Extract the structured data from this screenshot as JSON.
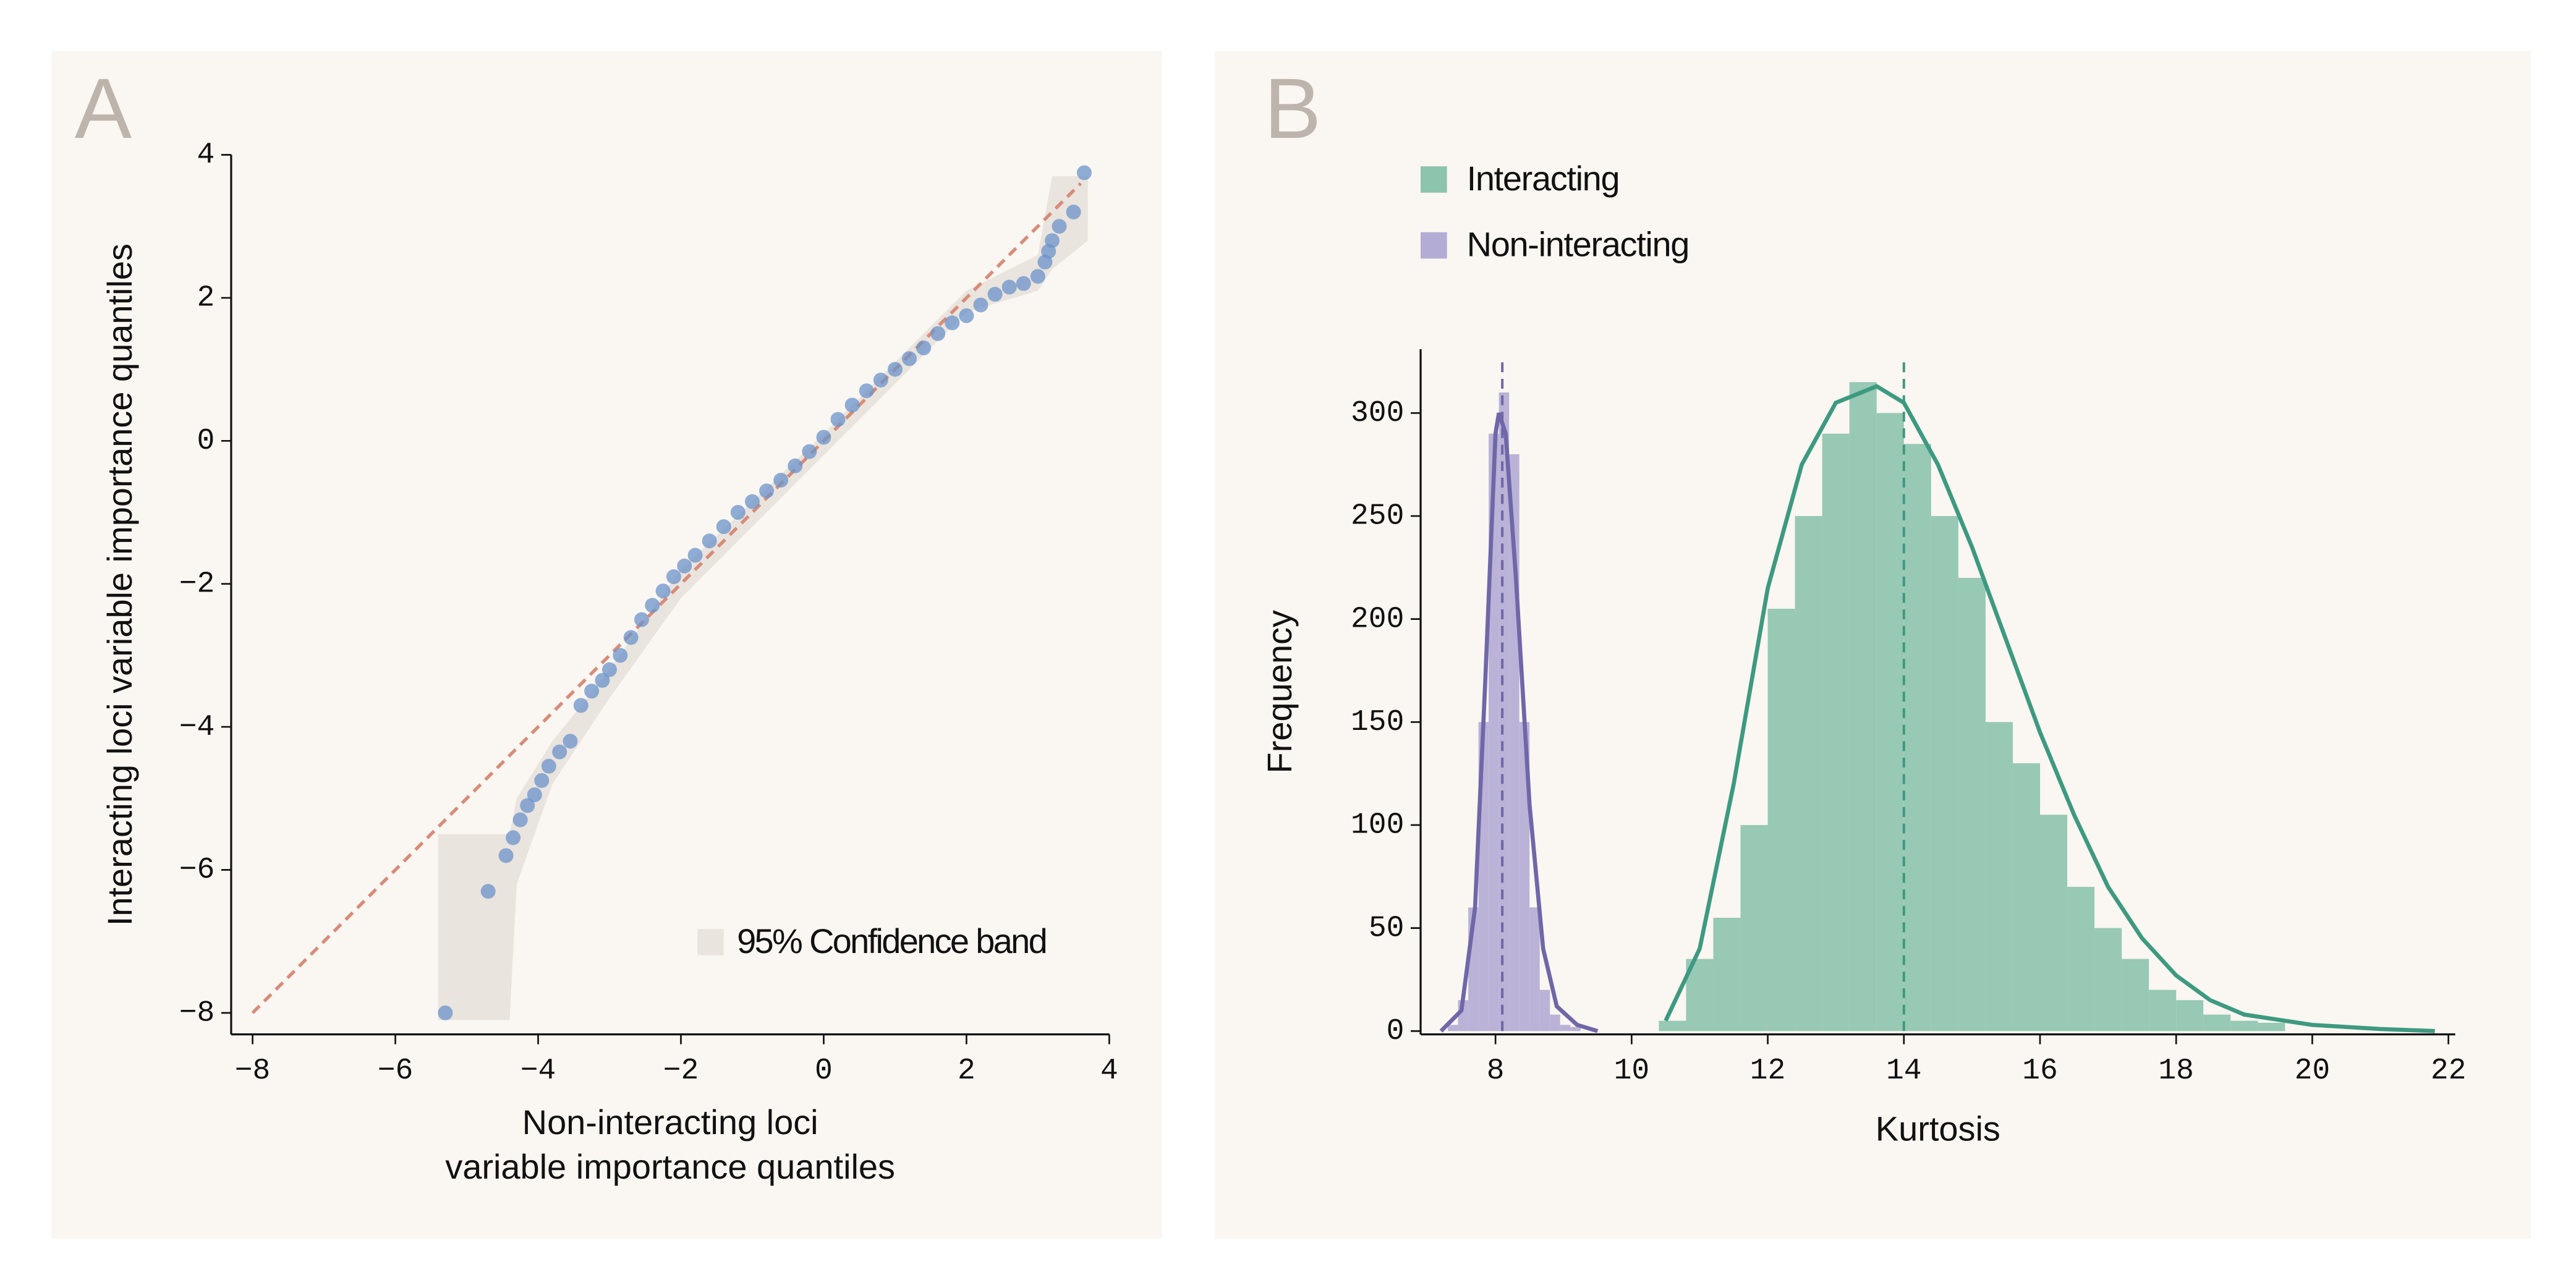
{
  "chart_data": [
    {
      "type": "scatter",
      "panel_label": "A",
      "xlabel": [
        "Non-interacting loci",
        "variable importance quantiles"
      ],
      "ylabel": "Interacting loci variable importance quantiles",
      "color": "#6b93c9",
      "x": [
        -5.3,
        -4.7,
        -4.45,
        -4.35,
        -4.25,
        -4.15,
        -4.05,
        -3.95,
        -3.85,
        -3.7,
        -3.55,
        -3.4,
        -3.25,
        -3.1,
        -3.0,
        -2.85,
        -2.7,
        -2.55,
        -2.4,
        -2.25,
        -2.1,
        -1.95,
        -1.8,
        -1.6,
        -1.4,
        -1.2,
        -1.0,
        -0.8,
        -0.6,
        -0.4,
        -0.2,
        0.0,
        0.2,
        0.4,
        0.6,
        0.8,
        1.0,
        1.2,
        1.4,
        1.6,
        1.8,
        2.0,
        2.2,
        2.4,
        2.6,
        2.8,
        3.0,
        3.1,
        3.15,
        3.2,
        3.3,
        3.5,
        3.65
      ],
      "y": [
        -8.0,
        -6.3,
        -5.8,
        -5.55,
        -5.3,
        -5.1,
        -4.95,
        -4.75,
        -4.55,
        -4.35,
        -4.2,
        -3.7,
        -3.5,
        -3.35,
        -3.2,
        -3.0,
        -2.75,
        -2.5,
        -2.3,
        -2.1,
        -1.9,
        -1.75,
        -1.6,
        -1.4,
        -1.2,
        -1.0,
        -0.85,
        -0.7,
        -0.55,
        -0.35,
        -0.15,
        0.05,
        0.3,
        0.5,
        0.7,
        0.85,
        1.0,
        1.15,
        1.3,
        1.5,
        1.65,
        1.75,
        1.9,
        2.05,
        2.15,
        2.2,
        2.3,
        2.5,
        2.65,
        2.8,
        3.0,
        3.2,
        3.75
      ],
      "reference_line": {
        "x": [
          -8,
          3.6
        ],
        "y": [
          -8,
          3.6
        ],
        "color": "#d88b78"
      },
      "band": {
        "name": "95% Confidence band",
        "color": "#e9e4de",
        "x": [
          -5.4,
          -4.4,
          -4.3,
          -3.8,
          -3.0,
          -2.0,
          0.0,
          2.0,
          3.0,
          3.2,
          3.7
        ],
        "upper": [
          -5.5,
          -5.5,
          -5.0,
          -4.2,
          -3.2,
          -1.8,
          0.1,
          2.1,
          2.6,
          3.7,
          3.7
        ],
        "lower": [
          -8.1,
          -8.1,
          -6.2,
          -4.8,
          -3.6,
          -2.2,
          -0.2,
          1.8,
          2.1,
          2.4,
          2.8
        ]
      },
      "legend": "lower right",
      "xlim": [
        -8.3,
        4
      ],
      "ylim": [
        -8.3,
        4
      ],
      "xticks": [
        {
          "value": -8,
          "label": "−8"
        },
        {
          "value": -6,
          "label": "−6"
        },
        {
          "value": -4,
          "label": "−4"
        },
        {
          "value": -2,
          "label": "−2"
        },
        0,
        2,
        4
      ],
      "yticks": [
        {
          "value": -8,
          "label": "−8"
        },
        {
          "value": -6,
          "label": "−6"
        },
        {
          "value": -4,
          "label": "−4"
        },
        {
          "value": -2,
          "label": "−2"
        },
        0,
        2,
        4
      ]
    },
    {
      "type": "histogram",
      "panel_label": "B",
      "xlabel": "Kurtosis",
      "ylabel": "Frequency",
      "legend": "upper left",
      "series": [
        {
          "name": "Interacting",
          "color": "#3d9a80",
          "bar_color": "#8cc4ae",
          "bins": [
            10.4,
            10.8,
            11.2,
            11.6,
            12.0,
            12.4,
            12.8,
            13.2,
            13.6,
            14.0,
            14.4,
            14.8,
            15.2,
            15.6,
            16.0,
            16.4,
            16.8,
            17.2,
            17.6,
            18.0,
            18.4,
            18.8,
            19.2,
            19.6
          ],
          "counts": [
            5,
            35,
            55,
            100,
            205,
            250,
            290,
            315,
            300,
            285,
            250,
            220,
            150,
            130,
            105,
            70,
            50,
            35,
            20,
            15,
            8,
            5,
            4
          ],
          "kde": {
            "x": [
              10.5,
              11,
              11.5,
              12,
              12.5,
              13,
              13.6,
              14,
              14.5,
              15,
              15.5,
              16,
              16.5,
              17,
              17.5,
              18,
              18.5,
              19,
              20,
              21,
              21.8
            ],
            "y": [
              5,
              40,
              120,
              215,
              275,
              305,
              313,
              305,
              275,
              235,
              190,
              145,
              105,
              70,
              45,
              27,
              15,
              8,
              3,
              1,
              0
            ]
          },
          "mean": 14.0
        },
        {
          "name": "Non-interacting",
          "color": "#6f67a8",
          "bar_color": "#b3acd4",
          "bins": [
            7.3,
            7.45,
            7.6,
            7.75,
            7.9,
            8.05,
            8.2,
            8.35,
            8.5,
            8.65,
            8.8,
            8.95,
            9.1,
            9.25
          ],
          "counts": [
            3,
            15,
            60,
            150,
            290,
            310,
            280,
            150,
            60,
            20,
            8,
            3,
            2
          ],
          "kde": {
            "x": [
              7.2,
              7.5,
              7.7,
              7.85,
              8.0,
              8.05,
              8.15,
              8.3,
              8.5,
              8.7,
              8.9,
              9.2,
              9.5
            ],
            "y": [
              0,
              10,
              60,
              170,
              290,
              300,
              290,
              220,
              110,
              40,
              12,
              3,
              0
            ]
          },
          "mean": 8.1
        }
      ],
      "xlim": [
        6.9,
        22.1
      ],
      "ylim": [
        0,
        331
      ],
      "xticks": [
        8,
        10,
        12,
        14,
        16,
        18,
        20,
        22
      ],
      "yticks": [
        0,
        50,
        100,
        150,
        200,
        250,
        300
      ]
    }
  ]
}
